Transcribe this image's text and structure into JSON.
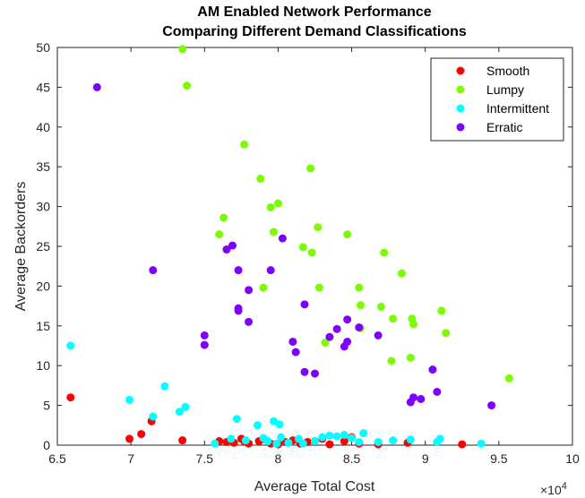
{
  "chart_data": {
    "type": "scatter",
    "title": [
      "AM Enabled Network Performance",
      "Comparing Different Demand Classifications"
    ],
    "xlabel": "Average Total Cost",
    "ylabel": "Average Backorders",
    "x_exponent_label": "× 10^4",
    "xlim": [
      6.5,
      10
    ],
    "ylim": [
      0,
      50
    ],
    "xticks": [
      "6.5",
      "7",
      "7.5",
      "8",
      "8.5",
      "9",
      "9.5",
      "10"
    ],
    "yticks": [
      "0",
      "5",
      "10",
      "15",
      "20",
      "25",
      "30",
      "35",
      "40",
      "45",
      "50"
    ],
    "grid": false,
    "legend_position": "top-right",
    "series": [
      {
        "name": "Smooth",
        "color": "#ff0000",
        "points": [
          [
            6.59,
            6
          ],
          [
            6.99,
            0.8
          ],
          [
            7.07,
            1.4
          ],
          [
            7.14,
            3
          ],
          [
            7.35,
            0.6
          ],
          [
            7.6,
            0.5
          ],
          [
            7.65,
            0.4
          ],
          [
            7.7,
            0.3
          ],
          [
            7.75,
            0.8
          ],
          [
            7.77,
            0.5
          ],
          [
            7.8,
            0.2
          ],
          [
            7.87,
            0.5
          ],
          [
            7.9,
            0.8
          ],
          [
            7.95,
            0.2
          ],
          [
            8.0,
            0.1
          ],
          [
            8.05,
            0.4
          ],
          [
            8.1,
            0.6
          ],
          [
            8.15,
            0.2
          ],
          [
            8.2,
            0.4
          ],
          [
            8.25,
            0.5
          ],
          [
            8.3,
            0.8
          ],
          [
            8.35,
            0.1
          ],
          [
            8.45,
            0.5
          ],
          [
            8.5,
            1
          ],
          [
            8.55,
            0.2
          ],
          [
            8.68,
            0.1
          ],
          [
            8.88,
            0.3
          ],
          [
            9.25,
            0.1
          ]
        ]
      },
      {
        "name": "Lumpy",
        "color": "#7cfc00",
        "points": [
          [
            7.35,
            49.8
          ],
          [
            7.38,
            45.2
          ],
          [
            7.6,
            26.5
          ],
          [
            7.63,
            28.6
          ],
          [
            7.77,
            37.8
          ],
          [
            7.88,
            33.5
          ],
          [
            7.9,
            19.8
          ],
          [
            7.95,
            29.9
          ],
          [
            7.97,
            26.8
          ],
          [
            8.0,
            30.4
          ],
          [
            8.17,
            24.9
          ],
          [
            8.22,
            34.8
          ],
          [
            8.23,
            24.2
          ],
          [
            8.27,
            27.4
          ],
          [
            8.28,
            19.8
          ],
          [
            8.32,
            12.9
          ],
          [
            8.47,
            26.5
          ],
          [
            8.55,
            19.8
          ],
          [
            8.56,
            17.6
          ],
          [
            8.56,
            14.7
          ],
          [
            8.7,
            17.4
          ],
          [
            8.72,
            24.2
          ],
          [
            8.77,
            10.6
          ],
          [
            8.78,
            15.9
          ],
          [
            8.84,
            21.6
          ],
          [
            8.9,
            11
          ],
          [
            8.91,
            15.9
          ],
          [
            8.92,
            15.2
          ],
          [
            9.11,
            16.9
          ],
          [
            9.14,
            14.1
          ],
          [
            9.57,
            8.4
          ]
        ]
      },
      {
        "name": "Intermittent",
        "color": "#00ffff",
        "points": [
          [
            6.59,
            12.5
          ],
          [
            6.99,
            5.7
          ],
          [
            7.15,
            3.6
          ],
          [
            7.23,
            7.4
          ],
          [
            7.33,
            4.2
          ],
          [
            7.37,
            4.8
          ],
          [
            7.57,
            0.2
          ],
          [
            7.68,
            0.8
          ],
          [
            7.72,
            3.3
          ],
          [
            7.78,
            0.6
          ],
          [
            7.86,
            2.5
          ],
          [
            7.9,
            0.9
          ],
          [
            7.93,
            0.5
          ],
          [
            7.97,
            3
          ],
          [
            7.99,
            0.2
          ],
          [
            8.01,
            2.6
          ],
          [
            8.02,
            1
          ],
          [
            8.07,
            0.3
          ],
          [
            8.14,
            0.8
          ],
          [
            8.17,
            0.2
          ],
          [
            8.25,
            0.5
          ],
          [
            8.3,
            1
          ],
          [
            8.35,
            1.2
          ],
          [
            8.4,
            1.1
          ],
          [
            8.45,
            1.3
          ],
          [
            8.5,
            0.9
          ],
          [
            8.55,
            0.4
          ],
          [
            8.58,
            1.5
          ],
          [
            8.68,
            0.4
          ],
          [
            8.78,
            0.6
          ],
          [
            8.9,
            0.7
          ],
          [
            9.08,
            0.4
          ],
          [
            9.1,
            0.8
          ],
          [
            9.38,
            0.2
          ]
        ]
      },
      {
        "name": "Erratic",
        "color": "#7f00ff",
        "points": [
          [
            6.77,
            45
          ],
          [
            7.15,
            22
          ],
          [
            7.5,
            13.8
          ],
          [
            7.5,
            12.6
          ],
          [
            7.65,
            24.6
          ],
          [
            7.69,
            25.1
          ],
          [
            7.73,
            17.2
          ],
          [
            7.73,
            16.9
          ],
          [
            7.73,
            22
          ],
          [
            7.8,
            15.5
          ],
          [
            7.8,
            19.5
          ],
          [
            7.95,
            22
          ],
          [
            8.03,
            26
          ],
          [
            8.1,
            13
          ],
          [
            8.12,
            11.7
          ],
          [
            8.18,
            17.7
          ],
          [
            8.18,
            9.2
          ],
          [
            8.25,
            9
          ],
          [
            8.35,
            13.6
          ],
          [
            8.4,
            14.6
          ],
          [
            8.45,
            12.4
          ],
          [
            8.47,
            13
          ],
          [
            8.47,
            15.8
          ],
          [
            8.55,
            14.8
          ],
          [
            8.68,
            13.8
          ],
          [
            8.9,
            5.4
          ],
          [
            8.92,
            6
          ],
          [
            8.97,
            5.8
          ],
          [
            9.05,
            9.5
          ],
          [
            9.08,
            6.7
          ],
          [
            9.45,
            5
          ]
        ]
      }
    ]
  }
}
